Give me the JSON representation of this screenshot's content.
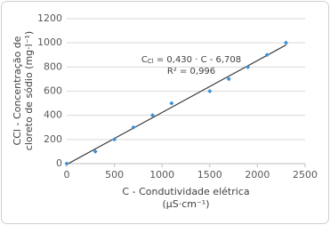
{
  "chart_data": {
    "type": "scatter",
    "x": [
      0,
      300,
      500,
      700,
      900,
      1100,
      1500,
      1700,
      1900,
      2100,
      2300
    ],
    "values": [
      0,
      100,
      200,
      300,
      400,
      500,
      600,
      700,
      800,
      900,
      1000
    ],
    "color": "#3d8fd6",
    "fit": {
      "x": [
        0,
        2300
      ],
      "values": [
        -6.708,
        982.292
      ],
      "color": "#404040"
    },
    "xlim": [
      0,
      2500
    ],
    "xticks": [
      0,
      500,
      1000,
      1500,
      2000,
      2500
    ],
    "ylim": [
      0,
      1200
    ],
    "yticks": [
      0,
      200,
      400,
      600,
      800,
      1000,
      1200
    ],
    "grid": true,
    "xlabel": [
      "C - Condutividade elétrica",
      "(µS·cm⁻¹)"
    ],
    "ylabel": [
      "CCl - Concentração de",
      "cloreto de sódio (mg·l⁻¹)"
    ],
    "equation": {
      "lead": "C",
      "sub": "Cl",
      "rest": " = 0,430 · C - 6,708"
    },
    "r2": "R² = 0,996"
  }
}
